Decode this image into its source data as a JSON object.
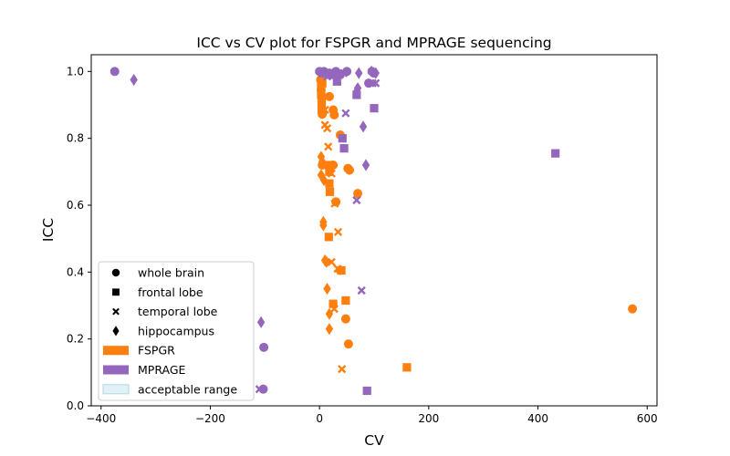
{
  "chart_data": {
    "type": "scatter",
    "title": "ICC vs CV plot for FSPGR and MPRAGE sequencing",
    "xlabel": "CV",
    "ylabel": "ICC",
    "xlim": [
      -418,
      618
    ],
    "ylim": [
      0.0,
      1.05
    ],
    "xticks": [
      -400,
      -200,
      0,
      200,
      400,
      600
    ],
    "yticks": [
      0.0,
      0.2,
      0.4,
      0.6,
      0.8,
      1.0
    ],
    "xtick_labels": [
      "−400",
      "−200",
      "0",
      "200",
      "400",
      "600"
    ],
    "ytick_labels": [
      "0.0",
      "0.2",
      "0.4",
      "0.6",
      "0.8",
      "1.0"
    ],
    "grid": false,
    "legend_position": "lower-left",
    "legend": [
      {
        "label": "whole brain",
        "marker": "circle",
        "color": "#000000"
      },
      {
        "label": "frontal lobe",
        "marker": "square",
        "color": "#000000"
      },
      {
        "label": "temporal lobe",
        "marker": "x",
        "color": "#000000"
      },
      {
        "label": "hippocampus",
        "marker": "diamond",
        "color": "#000000"
      },
      {
        "label": "FSPGR",
        "marker": "patch",
        "color": "#ff7f0e"
      },
      {
        "label": "MPRAGE",
        "marker": "patch",
        "color": "#9467bd"
      },
      {
        "label": "acceptable range",
        "marker": "patch",
        "color": "#add8e6"
      }
    ],
    "series": [
      {
        "name": "FSPGR",
        "color": "#ff7f0e",
        "points": [
          {
            "x": 2,
            "y": 0.975,
            "m": "circle"
          },
          {
            "x": 4,
            "y": 0.96,
            "m": "circle"
          },
          {
            "x": 3,
            "y": 0.945,
            "m": "circle"
          },
          {
            "x": 4,
            "y": 0.925,
            "m": "circle"
          },
          {
            "x": 18,
            "y": 0.925,
            "m": "circle"
          },
          {
            "x": 25,
            "y": 0.885,
            "m": "circle"
          },
          {
            "x": 27,
            "y": 0.87,
            "m": "circle"
          },
          {
            "x": 5,
            "y": 0.872,
            "m": "circle"
          },
          {
            "x": 38,
            "y": 0.81,
            "m": "circle"
          },
          {
            "x": 25,
            "y": 0.72,
            "m": "circle"
          },
          {
            "x": 5,
            "y": 0.72,
            "m": "circle"
          },
          {
            "x": 52,
            "y": 0.71,
            "m": "circle"
          },
          {
            "x": 55,
            "y": 0.705,
            "m": "circle"
          },
          {
            "x": 70,
            "y": 0.635,
            "m": "circle"
          },
          {
            "x": 30,
            "y": 0.61,
            "m": "circle"
          },
          {
            "x": 38,
            "y": 0.405,
            "m": "circle"
          },
          {
            "x": 48,
            "y": 0.26,
            "m": "circle"
          },
          {
            "x": 53,
            "y": 0.185,
            "m": "circle"
          },
          {
            "x": 573,
            "y": 0.29,
            "m": "circle"
          },
          {
            "x": 3,
            "y": 0.955,
            "m": "square"
          },
          {
            "x": 5,
            "y": 0.965,
            "m": "square"
          },
          {
            "x": 3,
            "y": 0.93,
            "m": "square"
          },
          {
            "x": 4,
            "y": 0.915,
            "m": "square"
          },
          {
            "x": 4,
            "y": 0.89,
            "m": "square"
          },
          {
            "x": 18,
            "y": 0.72,
            "m": "square"
          },
          {
            "x": 18,
            "y": 0.7,
            "m": "square"
          },
          {
            "x": 18,
            "y": 0.665,
            "m": "square"
          },
          {
            "x": 19,
            "y": 0.64,
            "m": "square"
          },
          {
            "x": 17,
            "y": 0.505,
            "m": "square"
          },
          {
            "x": 40,
            "y": 0.405,
            "m": "square"
          },
          {
            "x": 25,
            "y": 0.305,
            "m": "square"
          },
          {
            "x": 48,
            "y": 0.315,
            "m": "square"
          },
          {
            "x": 160,
            "y": 0.115,
            "m": "square"
          },
          {
            "x": 3,
            "y": 0.94,
            "m": "x"
          },
          {
            "x": 10,
            "y": 0.885,
            "m": "x"
          },
          {
            "x": 10,
            "y": 0.84,
            "m": "x"
          },
          {
            "x": 14,
            "y": 0.83,
            "m": "x"
          },
          {
            "x": 16,
            "y": 0.775,
            "m": "x"
          },
          {
            "x": 16,
            "y": 0.72,
            "m": "x"
          },
          {
            "x": 22,
            "y": 0.695,
            "m": "x"
          },
          {
            "x": 28,
            "y": 0.605,
            "m": "x"
          },
          {
            "x": 34,
            "y": 0.52,
            "m": "x"
          },
          {
            "x": 22,
            "y": 0.43,
            "m": "x"
          },
          {
            "x": 33,
            "y": 0.41,
            "m": "x"
          },
          {
            "x": 27,
            "y": 0.29,
            "m": "x"
          },
          {
            "x": 41,
            "y": 0.11,
            "m": "x"
          },
          {
            "x": 3,
            "y": 0.905,
            "m": "diamond"
          },
          {
            "x": 3,
            "y": 0.875,
            "m": "diamond"
          },
          {
            "x": 3,
            "y": 0.745,
            "m": "diamond"
          },
          {
            "x": 5,
            "y": 0.73,
            "m": "diamond"
          },
          {
            "x": 3,
            "y": 0.69,
            "m": "diamond"
          },
          {
            "x": 8,
            "y": 0.675,
            "m": "diamond"
          },
          {
            "x": 7,
            "y": 0.55,
            "m": "diamond"
          },
          {
            "x": 7,
            "y": 0.54,
            "m": "diamond"
          },
          {
            "x": 10,
            "y": 0.435,
            "m": "diamond"
          },
          {
            "x": 13,
            "y": 0.43,
            "m": "diamond"
          },
          {
            "x": 14,
            "y": 0.35,
            "m": "diamond"
          },
          {
            "x": 18,
            "y": 0.275,
            "m": "diamond"
          },
          {
            "x": 18,
            "y": 0.23,
            "m": "diamond"
          }
        ]
      },
      {
        "name": "MPRAGE",
        "color": "#9467bd",
        "points": [
          {
            "x": -375,
            "y": 1.0,
            "m": "circle"
          },
          {
            "x": 0,
            "y": 1.0,
            "m": "circle"
          },
          {
            "x": 8,
            "y": 1.0,
            "m": "circle"
          },
          {
            "x": 18,
            "y": 0.995,
            "m": "circle"
          },
          {
            "x": 30,
            "y": 1.0,
            "m": "circle"
          },
          {
            "x": 38,
            "y": 0.99,
            "m": "circle"
          },
          {
            "x": 50,
            "y": 1.0,
            "m": "circle"
          },
          {
            "x": 90,
            "y": 0.965,
            "m": "circle"
          },
          {
            "x": 96,
            "y": 1.0,
            "m": "circle"
          },
          {
            "x": 100,
            "y": 0.995,
            "m": "circle"
          },
          {
            "x": -102,
            "y": 0.175,
            "m": "circle"
          },
          {
            "x": -103,
            "y": 0.05,
            "m": "circle"
          },
          {
            "x": 5,
            "y": 0.995,
            "m": "square"
          },
          {
            "x": 20,
            "y": 0.99,
            "m": "square"
          },
          {
            "x": 32,
            "y": 0.97,
            "m": "square"
          },
          {
            "x": 68,
            "y": 0.93,
            "m": "square"
          },
          {
            "x": 100,
            "y": 0.89,
            "m": "square"
          },
          {
            "x": 42,
            "y": 0.8,
            "m": "square"
          },
          {
            "x": 45,
            "y": 0.77,
            "m": "square"
          },
          {
            "x": 432,
            "y": 0.755,
            "m": "square"
          },
          {
            "x": 87,
            "y": 0.045,
            "m": "square"
          },
          {
            "x": 10,
            "y": 0.995,
            "m": "x"
          },
          {
            "x": 14,
            "y": 0.985,
            "m": "x"
          },
          {
            "x": 26,
            "y": 0.99,
            "m": "x"
          },
          {
            "x": 35,
            "y": 0.995,
            "m": "x"
          },
          {
            "x": 44,
            "y": 0.995,
            "m": "x"
          },
          {
            "x": 97,
            "y": 0.965,
            "m": "x"
          },
          {
            "x": 103,
            "y": 0.965,
            "m": "x"
          },
          {
            "x": 48,
            "y": 0.875,
            "m": "x"
          },
          {
            "x": 68,
            "y": 0.615,
            "m": "x"
          },
          {
            "x": 77,
            "y": 0.345,
            "m": "x"
          },
          {
            "x": -110,
            "y": 0.05,
            "m": "x"
          },
          {
            "x": -340,
            "y": 0.975,
            "m": "diamond"
          },
          {
            "x": 72,
            "y": 0.995,
            "m": "diamond"
          },
          {
            "x": 95,
            "y": 1.0,
            "m": "diamond"
          },
          {
            "x": 103,
            "y": 0.995,
            "m": "diamond"
          },
          {
            "x": 70,
            "y": 0.95,
            "m": "diamond"
          },
          {
            "x": 68,
            "y": 0.94,
            "m": "diamond"
          },
          {
            "x": 80,
            "y": 0.835,
            "m": "diamond"
          },
          {
            "x": 85,
            "y": 0.72,
            "m": "diamond"
          },
          {
            "x": -107,
            "y": 0.25,
            "m": "diamond"
          }
        ]
      }
    ]
  }
}
